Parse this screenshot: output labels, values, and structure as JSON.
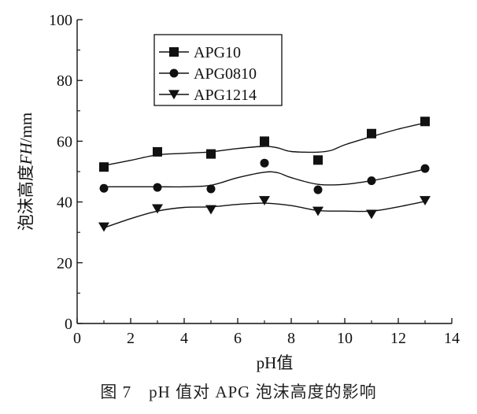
{
  "caption": "图 7　pH 值对 APG 泡沫高度的影响",
  "chart_data": {
    "type": "scatter",
    "xlabel": "pH值",
    "ylabel_main": "泡沫高度",
    "ylabel_symbol": "FH",
    "ylabel_unit": "/mm",
    "xlim": [
      0,
      14
    ],
    "ylim": [
      0,
      100
    ],
    "x_ticks": [
      0,
      2,
      4,
      6,
      8,
      10,
      12,
      14
    ],
    "y_ticks": [
      0,
      20,
      40,
      60,
      80,
      100
    ],
    "legend_position": "top-left",
    "grid": false,
    "x": [
      1,
      3,
      5,
      7,
      9,
      11,
      13
    ],
    "series": [
      {
        "name": "APG10",
        "marker": "square",
        "values": [
          51.5,
          56.5,
          55.8,
          60.0,
          53.8,
          62.5,
          66.5
        ],
        "fit": [
          [
            1,
            52
          ],
          [
            2,
            53.7
          ],
          [
            3,
            55.5
          ],
          [
            4,
            56
          ],
          [
            5,
            56.5
          ],
          [
            6,
            57.6
          ],
          [
            7,
            58.3
          ],
          [
            7.5,
            57.8
          ],
          [
            8,
            56.6
          ],
          [
            9,
            56.4
          ],
          [
            9.5,
            57
          ],
          [
            10,
            58.8
          ],
          [
            11,
            61.5
          ],
          [
            12,
            64
          ],
          [
            13,
            66
          ]
        ]
      },
      {
        "name": "APG0810",
        "marker": "circle",
        "values": [
          44.5,
          44.8,
          44.3,
          52.8,
          44.0,
          47.0,
          51.0
        ],
        "fit": [
          [
            1,
            45
          ],
          [
            2,
            45
          ],
          [
            3,
            45
          ],
          [
            4,
            45
          ],
          [
            5,
            45.5
          ],
          [
            6,
            48
          ],
          [
            7,
            49.8
          ],
          [
            7.5,
            49.6
          ],
          [
            8,
            48
          ],
          [
            9,
            45.8
          ],
          [
            10,
            45.8
          ],
          [
            11,
            47
          ],
          [
            12,
            48.8
          ],
          [
            13,
            50.8
          ]
        ]
      },
      {
        "name": "APG1214",
        "marker": "triangle-down",
        "values": [
          31.8,
          37.8,
          37.5,
          40.5,
          37.0,
          36.0,
          40.5
        ],
        "fit": [
          [
            1,
            31.5
          ],
          [
            2,
            34.5
          ],
          [
            3,
            37
          ],
          [
            4,
            38.2
          ],
          [
            5,
            38.4
          ],
          [
            6,
            39.2
          ],
          [
            7,
            39.6
          ],
          [
            8,
            38.8
          ],
          [
            9,
            37.2
          ],
          [
            10,
            37
          ],
          [
            11,
            37
          ],
          [
            12,
            38.4
          ],
          [
            13,
            40.2
          ]
        ]
      }
    ]
  }
}
